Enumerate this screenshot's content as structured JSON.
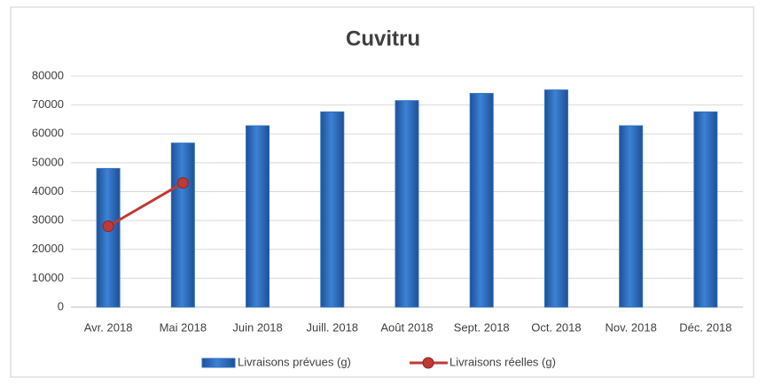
{
  "chart_data": {
    "type": "bar",
    "title": "Cuvitru",
    "categories": [
      "Avr. 2018",
      "Mai 2018",
      "Juin 2018",
      "Juill. 2018",
      "Août 2018",
      "Sept. 2018",
      "Oct. 2018",
      "Nov. 2018",
      "Déc. 2018"
    ],
    "series": [
      {
        "name": "Livraisons prévues (g)",
        "type": "bar",
        "color": "#2e6fc0",
        "values": [
          48000,
          56800,
          62800,
          67600,
          71500,
          74000,
          75200,
          62800,
          67600
        ]
      },
      {
        "name": "Livraisons réelles (g)",
        "type": "line",
        "color": "#be3a34",
        "values": [
          28000,
          43000,
          null,
          null,
          null,
          null,
          null,
          null,
          null
        ]
      }
    ],
    "ylim": [
      0,
      80000
    ],
    "yticks": [
      0,
      10000,
      20000,
      30000,
      40000,
      50000,
      60000,
      70000,
      80000
    ],
    "grid": true,
    "legend": "bottom"
  }
}
